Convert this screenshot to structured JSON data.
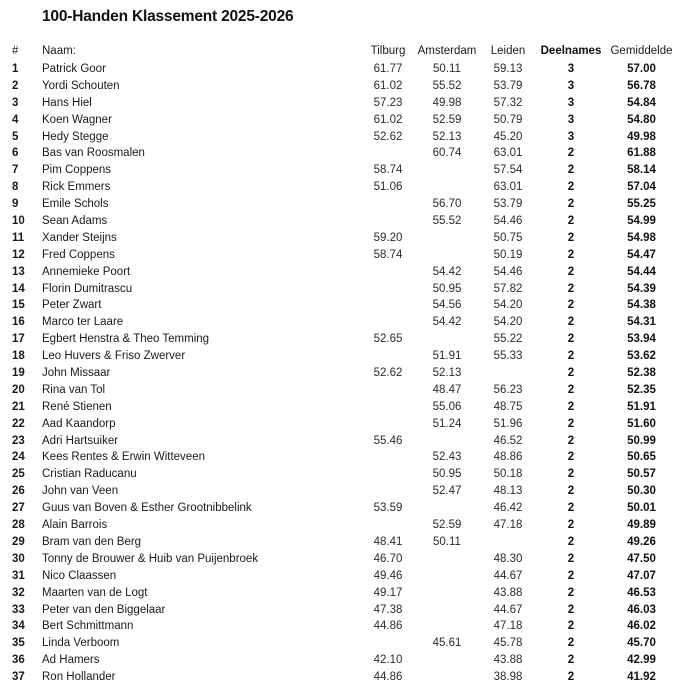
{
  "title": "100-Handen Klassement 2025-2026",
  "colors": {
    "background": "#ffffff",
    "text": "#1a1a1a"
  },
  "table": {
    "headers": {
      "rank": "#",
      "name": "Naam:",
      "tilburg": "Tilburg",
      "amsterdam": "Amsterdam",
      "leiden": "Leiden",
      "deelnames": "Deelnames",
      "gemiddelde": "Gemiddelde"
    },
    "rows": [
      {
        "rank": "1",
        "name": "Patrick Goor",
        "tilburg": "61.77",
        "amsterdam": "50.11",
        "leiden": "59.13",
        "deelnames": "3",
        "gemiddelde": "57.00"
      },
      {
        "rank": "2",
        "name": "Yordi Schouten",
        "tilburg": "61.02",
        "amsterdam": "55.52",
        "leiden": "53.79",
        "deelnames": "3",
        "gemiddelde": "56.78"
      },
      {
        "rank": "3",
        "name": "Hans Hiel",
        "tilburg": "57.23",
        "amsterdam": "49.98",
        "leiden": "57.32",
        "deelnames": "3",
        "gemiddelde": "54.84"
      },
      {
        "rank": "4",
        "name": "Koen Wagner",
        "tilburg": "61.02",
        "amsterdam": "52.59",
        "leiden": "50.79",
        "deelnames": "3",
        "gemiddelde": "54.80"
      },
      {
        "rank": "5",
        "name": "Hedy Stegge",
        "tilburg": "52.62",
        "amsterdam": "52.13",
        "leiden": "45.20",
        "deelnames": "3",
        "gemiddelde": "49.98"
      },
      {
        "rank": "6",
        "name": "Bas van Roosmalen",
        "tilburg": "",
        "amsterdam": "60.74",
        "leiden": "63.01",
        "deelnames": "2",
        "gemiddelde": "61.88"
      },
      {
        "rank": "7",
        "name": "Pim Coppens",
        "tilburg": "58.74",
        "amsterdam": "",
        "leiden": "57.54",
        "deelnames": "2",
        "gemiddelde": "58.14"
      },
      {
        "rank": "8",
        "name": "Rick Emmers",
        "tilburg": "51.06",
        "amsterdam": "",
        "leiden": "63.01",
        "deelnames": "2",
        "gemiddelde": "57.04"
      },
      {
        "rank": "9",
        "name": "Emile Schols",
        "tilburg": "",
        "amsterdam": "56.70",
        "leiden": "53.79",
        "deelnames": "2",
        "gemiddelde": "55.25"
      },
      {
        "rank": "10",
        "name": "Sean Adams",
        "tilburg": "",
        "amsterdam": "55.52",
        "leiden": "54.46",
        "deelnames": "2",
        "gemiddelde": "54.99"
      },
      {
        "rank": "11",
        "name": "Xander Steijns",
        "tilburg": "59.20",
        "amsterdam": "",
        "leiden": "50.75",
        "deelnames": "2",
        "gemiddelde": "54.98"
      },
      {
        "rank": "12",
        "name": "Fred Coppens",
        "tilburg": "58.74",
        "amsterdam": "",
        "leiden": "50.19",
        "deelnames": "2",
        "gemiddelde": "54.47"
      },
      {
        "rank": "13",
        "name": "Annemieke Poort",
        "tilburg": "",
        "amsterdam": "54.42",
        "leiden": "54.46",
        "deelnames": "2",
        "gemiddelde": "54.44"
      },
      {
        "rank": "14",
        "name": "Florin Dumitrascu",
        "tilburg": "",
        "amsterdam": "50.95",
        "leiden": "57.82",
        "deelnames": "2",
        "gemiddelde": "54.39"
      },
      {
        "rank": "15",
        "name": "Peter Zwart",
        "tilburg": "",
        "amsterdam": "54.56",
        "leiden": "54.20",
        "deelnames": "2",
        "gemiddelde": "54.38"
      },
      {
        "rank": "16",
        "name": "Marco ter Laare",
        "tilburg": "",
        "amsterdam": "54.42",
        "leiden": "54.20",
        "deelnames": "2",
        "gemiddelde": "54.31"
      },
      {
        "rank": "17",
        "name": "Egbert Henstra & Theo Temming",
        "tilburg": "52.65",
        "amsterdam": "",
        "leiden": "55.22",
        "deelnames": "2",
        "gemiddelde": "53.94"
      },
      {
        "rank": "18",
        "name": "Leo Huvers & Friso Zwerver",
        "tilburg": "",
        "amsterdam": "51.91",
        "leiden": "55.33",
        "deelnames": "2",
        "gemiddelde": "53.62"
      },
      {
        "rank": "19",
        "name": "John Missaar",
        "tilburg": "52.62",
        "amsterdam": "52.13",
        "leiden": "",
        "deelnames": "2",
        "gemiddelde": "52.38"
      },
      {
        "rank": "20",
        "name": "Rina van Tol",
        "tilburg": "",
        "amsterdam": "48.47",
        "leiden": "56.23",
        "deelnames": "2",
        "gemiddelde": "52.35"
      },
      {
        "rank": "21",
        "name": "René Stienen",
        "tilburg": "",
        "amsterdam": "55.06",
        "leiden": "48.75",
        "deelnames": "2",
        "gemiddelde": "51.91"
      },
      {
        "rank": "22",
        "name": "Aad Kaandorp",
        "tilburg": "",
        "amsterdam": "51.24",
        "leiden": "51.96",
        "deelnames": "2",
        "gemiddelde": "51.60"
      },
      {
        "rank": "23",
        "name": "Adri Hartsuiker",
        "tilburg": "55.46",
        "amsterdam": "",
        "leiden": "46.52",
        "deelnames": "2",
        "gemiddelde": "50.99"
      },
      {
        "rank": "24",
        "name": "Kees Rentes & Erwin Witteveen",
        "tilburg": "",
        "amsterdam": "52.43",
        "leiden": "48.86",
        "deelnames": "2",
        "gemiddelde": "50.65"
      },
      {
        "rank": "25",
        "name": "Cristian Raducanu",
        "tilburg": "",
        "amsterdam": "50.95",
        "leiden": "50.18",
        "deelnames": "2",
        "gemiddelde": "50.57"
      },
      {
        "rank": "26",
        "name": "John van Veen",
        "tilburg": "",
        "amsterdam": "52.47",
        "leiden": "48.13",
        "deelnames": "2",
        "gemiddelde": "50.30"
      },
      {
        "rank": "27",
        "name": "Guus van Boven & Esther Grootnibbelink",
        "tilburg": "53.59",
        "amsterdam": "",
        "leiden": "46.42",
        "deelnames": "2",
        "gemiddelde": "50.01"
      },
      {
        "rank": "28",
        "name": "Alain Barrois",
        "tilburg": "",
        "amsterdam": "52.59",
        "leiden": "47.18",
        "deelnames": "2",
        "gemiddelde": "49.89"
      },
      {
        "rank": "29",
        "name": "Bram van den Berg",
        "tilburg": "48.41",
        "amsterdam": "50.11",
        "leiden": "",
        "deelnames": "2",
        "gemiddelde": "49.26"
      },
      {
        "rank": "30",
        "name": "Tonny de Brouwer & Huib van Puijenbroek",
        "tilburg": "46.70",
        "amsterdam": "",
        "leiden": "48.30",
        "deelnames": "2",
        "gemiddelde": "47.50"
      },
      {
        "rank": "31",
        "name": "Nico Claassen",
        "tilburg": "49.46",
        "amsterdam": "",
        "leiden": "44.67",
        "deelnames": "2",
        "gemiddelde": "47.07"
      },
      {
        "rank": "32",
        "name": "Maarten van de Logt",
        "tilburg": "49.17",
        "amsterdam": "",
        "leiden": "43.88",
        "deelnames": "2",
        "gemiddelde": "46.53"
      },
      {
        "rank": "33",
        "name": "Peter van den Biggelaar",
        "tilburg": "47.38",
        "amsterdam": "",
        "leiden": "44.67",
        "deelnames": "2",
        "gemiddelde": "46.03"
      },
      {
        "rank": "34",
        "name": "Bert Schmittmann",
        "tilburg": "44.86",
        "amsterdam": "",
        "leiden": "47.18",
        "deelnames": "2",
        "gemiddelde": "46.02"
      },
      {
        "rank": "35",
        "name": "Linda Verboom",
        "tilburg": "",
        "amsterdam": "45.61",
        "leiden": "45.78",
        "deelnames": "2",
        "gemiddelde": "45.70"
      },
      {
        "rank": "36",
        "name": "Ad Hamers",
        "tilburg": "42.10",
        "amsterdam": "",
        "leiden": "43.88",
        "deelnames": "2",
        "gemiddelde": "42.99"
      },
      {
        "rank": "37",
        "name": "Ron Hollander",
        "tilburg": "44.86",
        "amsterdam": "",
        "leiden": "38.98",
        "deelnames": "2",
        "gemiddelde": "41.92"
      }
    ]
  }
}
